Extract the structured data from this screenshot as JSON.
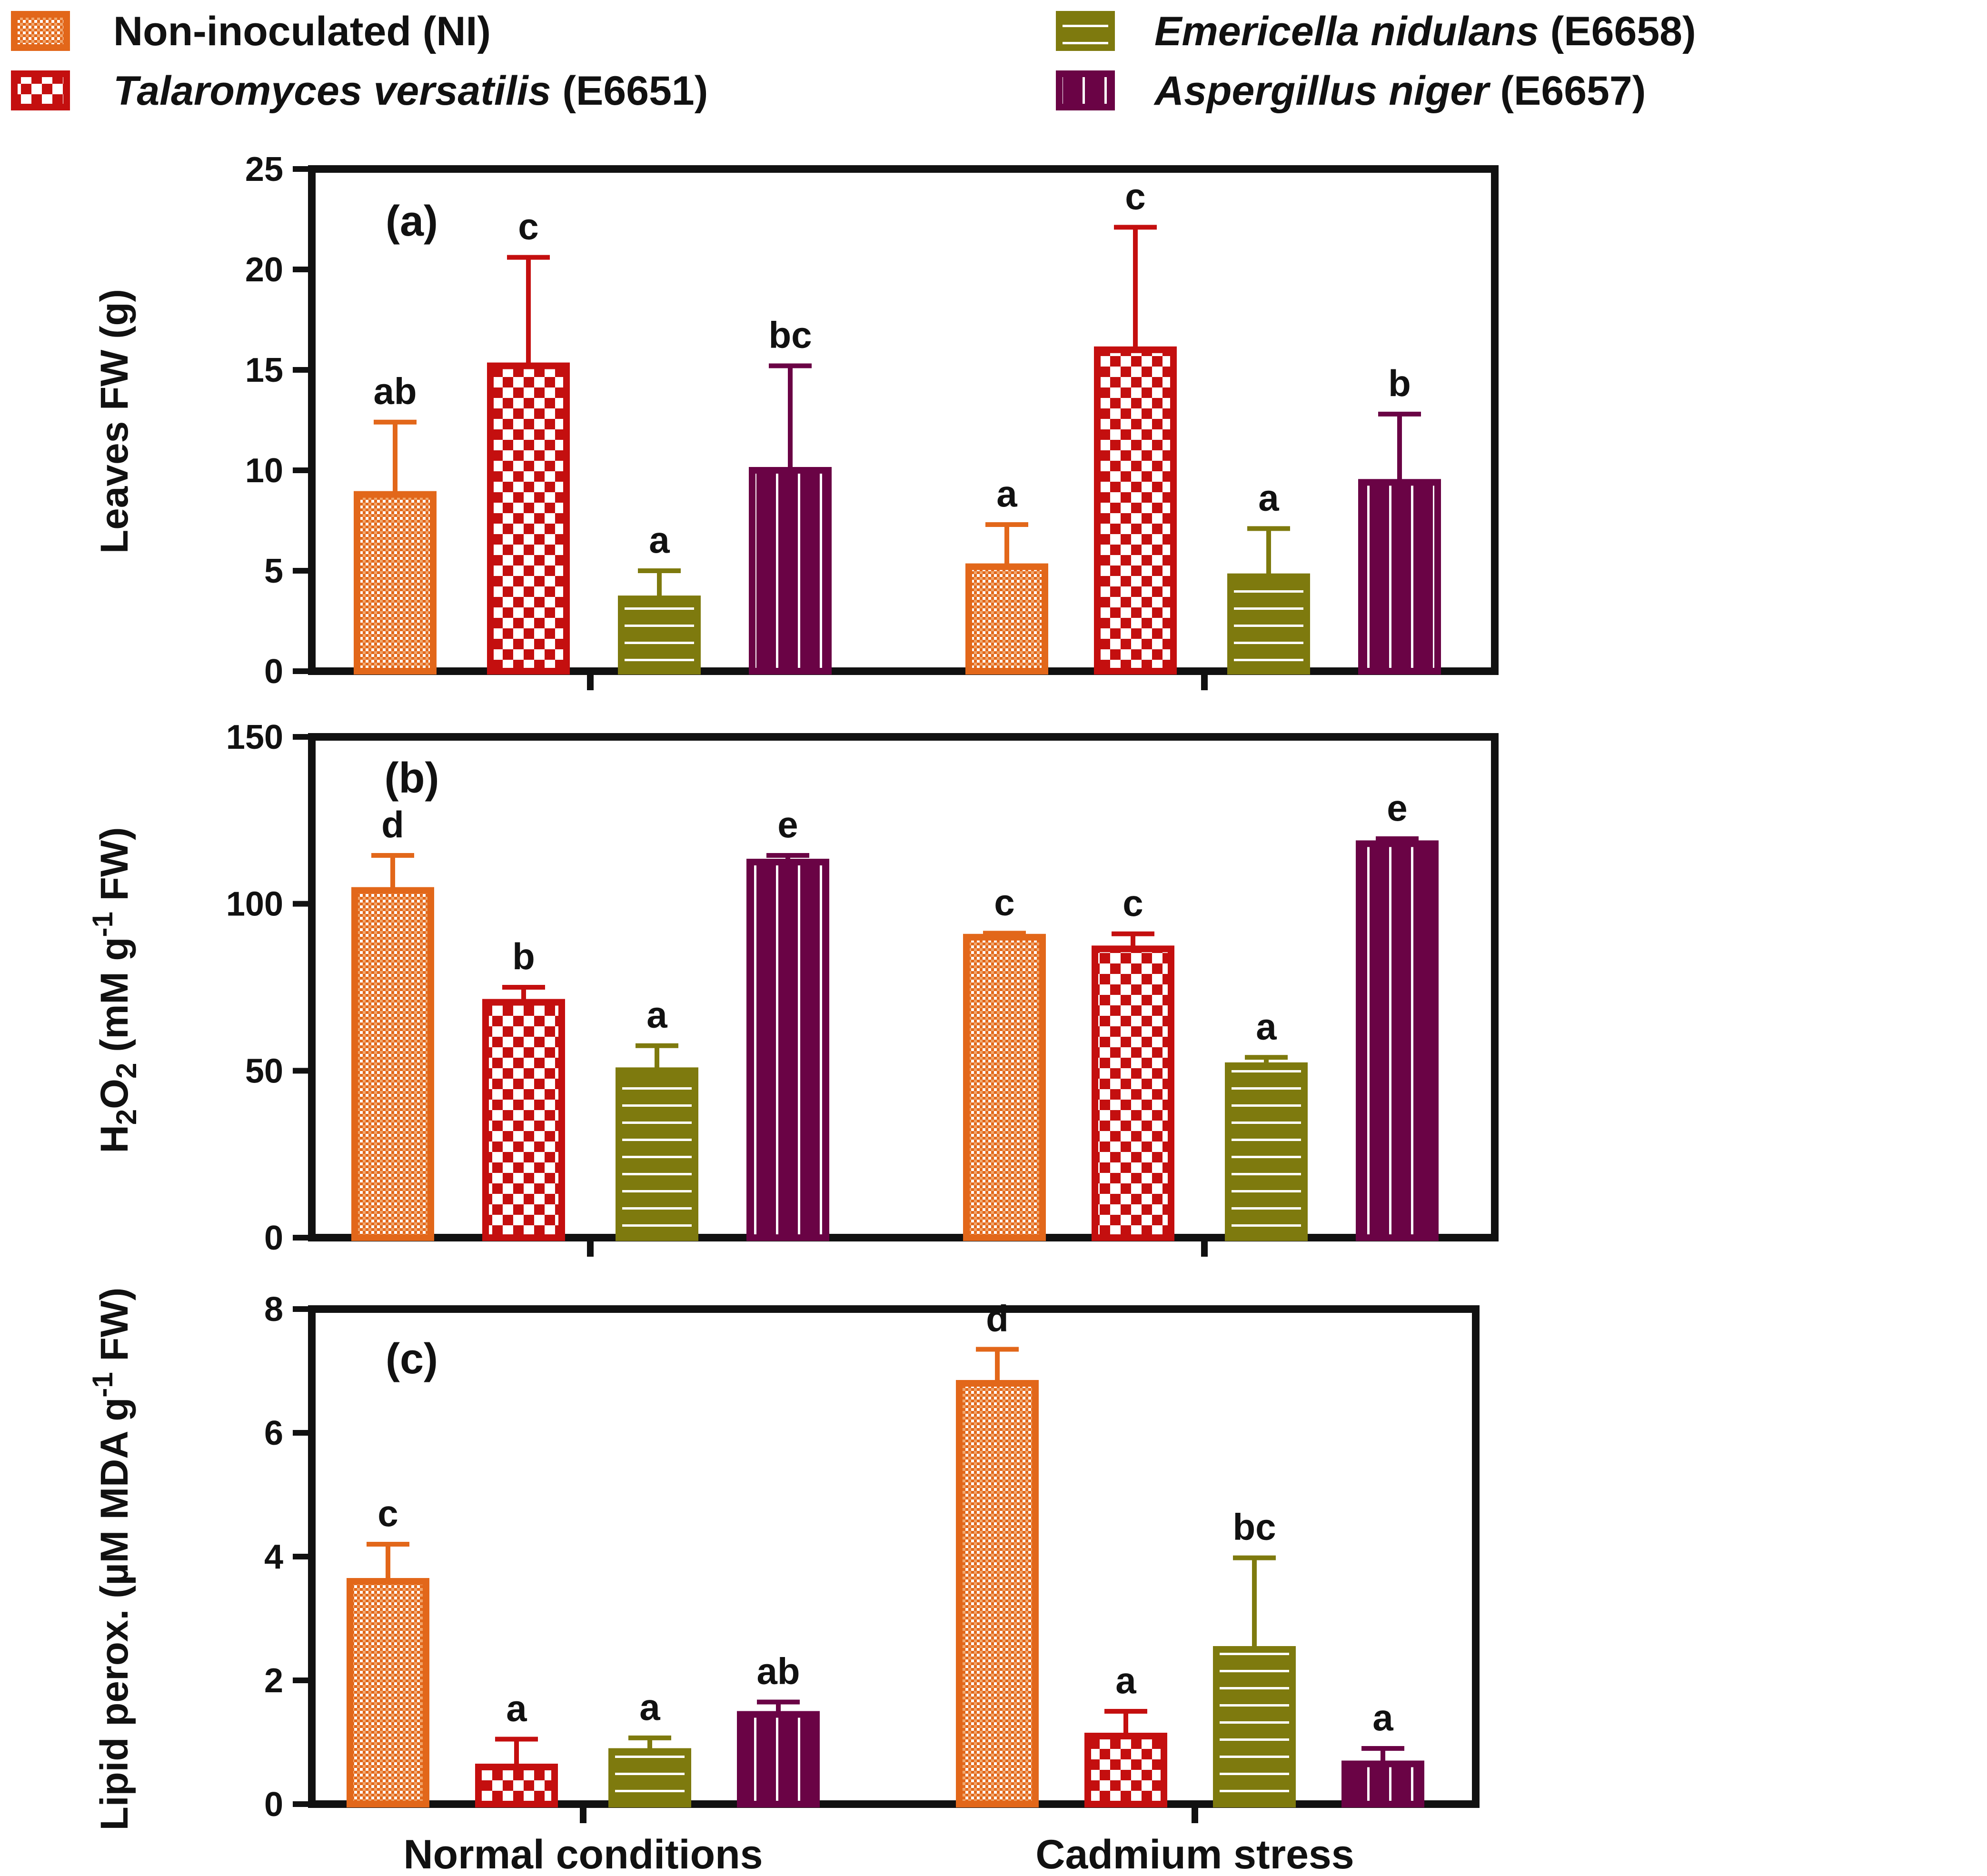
{
  "legend": [
    {
      "key": "NI",
      "name_plain": "Non-inoculated (NI)",
      "name_italic": "",
      "code": "",
      "color": "#E2671A",
      "pattern": "dots"
    },
    {
      "key": "E6651",
      "name_plain": "",
      "name_italic": "Talaromyces versatilis",
      "code": " (E6651)",
      "color": "#C40F0F",
      "pattern": "checker"
    },
    {
      "key": "E6658",
      "name_plain": "",
      "name_italic": "Emericella nidulans",
      "code": " (E6658)",
      "color": "#7E7A0E",
      "pattern": "hlines"
    },
    {
      "key": "E6657",
      "name_plain": "",
      "name_italic": "Aspergillus niger",
      "code": " (E6657)",
      "color": "#6A0345",
      "pattern": "vlines"
    }
  ],
  "chart_data": [
    {
      "type": "bar",
      "panel": "(a)",
      "ylabel": "Leaves FW (g)",
      "ylim": [
        0,
        25
      ],
      "yticks": [
        "0",
        "5",
        "10",
        "15",
        "20",
        "25"
      ],
      "categories": [
        "Normal conditions",
        "Cadmium stress"
      ],
      "series": [
        {
          "name": "Non-inoculated (NI)",
          "values": [
            8.8,
            5.2
          ],
          "errors": [
            3.6,
            2.1
          ],
          "letters": [
            "ab",
            "a"
          ]
        },
        {
          "name": "Talaromyces versatilis (E6651)",
          "values": [
            15.2,
            16.0
          ],
          "errors": [
            5.4,
            6.1
          ],
          "letters": [
            "c",
            "c"
          ]
        },
        {
          "name": "Emericella nidulans (E6658)",
          "values": [
            3.6,
            4.7
          ],
          "errors": [
            1.4,
            2.4
          ],
          "letters": [
            "a",
            "a"
          ]
        },
        {
          "name": "Aspergillus niger (E6657)",
          "values": [
            10.0,
            9.4
          ],
          "errors": [
            5.2,
            3.4
          ],
          "letters": [
            "bc",
            "b"
          ]
        }
      ]
    },
    {
      "type": "bar",
      "panel": "(b)",
      "ylabel_main": "H",
      "ylabel_sub1": "2",
      "ylabel_mid": "O",
      "ylabel_sub2": "2",
      "ylabel_unit": " (mM g",
      "ylabel_sup": "-1",
      "ylabel_end": " FW)",
      "ylim": [
        0,
        150
      ],
      "yticks": [
        "0",
        "50",
        "100",
        "150"
      ],
      "categories": [
        "Normal conditions",
        "Cadmium stress"
      ],
      "series": [
        {
          "name": "Non-inoculated (NI)",
          "values": [
            104,
            90
          ],
          "errors": [
            10.5,
            1.2
          ],
          "letters": [
            "d",
            "c"
          ]
        },
        {
          "name": "Talaromyces versatilis (E6651)",
          "values": [
            70.5,
            86.5
          ],
          "errors": [
            4.5,
            4.5
          ],
          "letters": [
            "b",
            "c"
          ]
        },
        {
          "name": "Emericella nidulans (E6658)",
          "values": [
            50,
            51.5
          ],
          "errors": [
            7.5,
            2.5
          ],
          "letters": [
            "a",
            "a"
          ]
        },
        {
          "name": "Aspergillus niger (E6657)",
          "values": [
            112.5,
            118
          ],
          "errors": [
            2,
            1.5
          ],
          "letters": [
            "e",
            "e"
          ]
        }
      ]
    },
    {
      "type": "bar",
      "panel": "(c)",
      "ylabel_main": "Lipid perox. (µM MDA g",
      "ylabel_sup": "-1",
      "ylabel_end": " FW)",
      "ylim": [
        0,
        8
      ],
      "yticks": [
        "0",
        "2",
        "4",
        "6",
        "8"
      ],
      "categories": [
        "Normal conditions",
        "Cadmium stress"
      ],
      "series": [
        {
          "name": "Non-inoculated (NI)",
          "values": [
            3.6,
            6.8
          ],
          "errors": [
            0.6,
            0.55
          ],
          "letters": [
            "c",
            "d"
          ]
        },
        {
          "name": "Talaromyces versatilis (E6651)",
          "values": [
            0.6,
            1.1
          ],
          "errors": [
            0.45,
            0.4
          ],
          "letters": [
            "a",
            "a"
          ]
        },
        {
          "name": "Emericella nidulans (E6658)",
          "values": [
            0.85,
            2.5
          ],
          "errors": [
            0.22,
            1.48
          ],
          "letters": [
            "a",
            "bc"
          ]
        },
        {
          "name": "Aspergillus niger (E6657)",
          "values": [
            1.45,
            0.65
          ],
          "errors": [
            0.2,
            0.25
          ],
          "letters": [
            "ab",
            "a"
          ]
        }
      ]
    }
  ],
  "xaxis": {
    "categories": [
      "Normal conditions",
      "Cadmium stress"
    ]
  }
}
